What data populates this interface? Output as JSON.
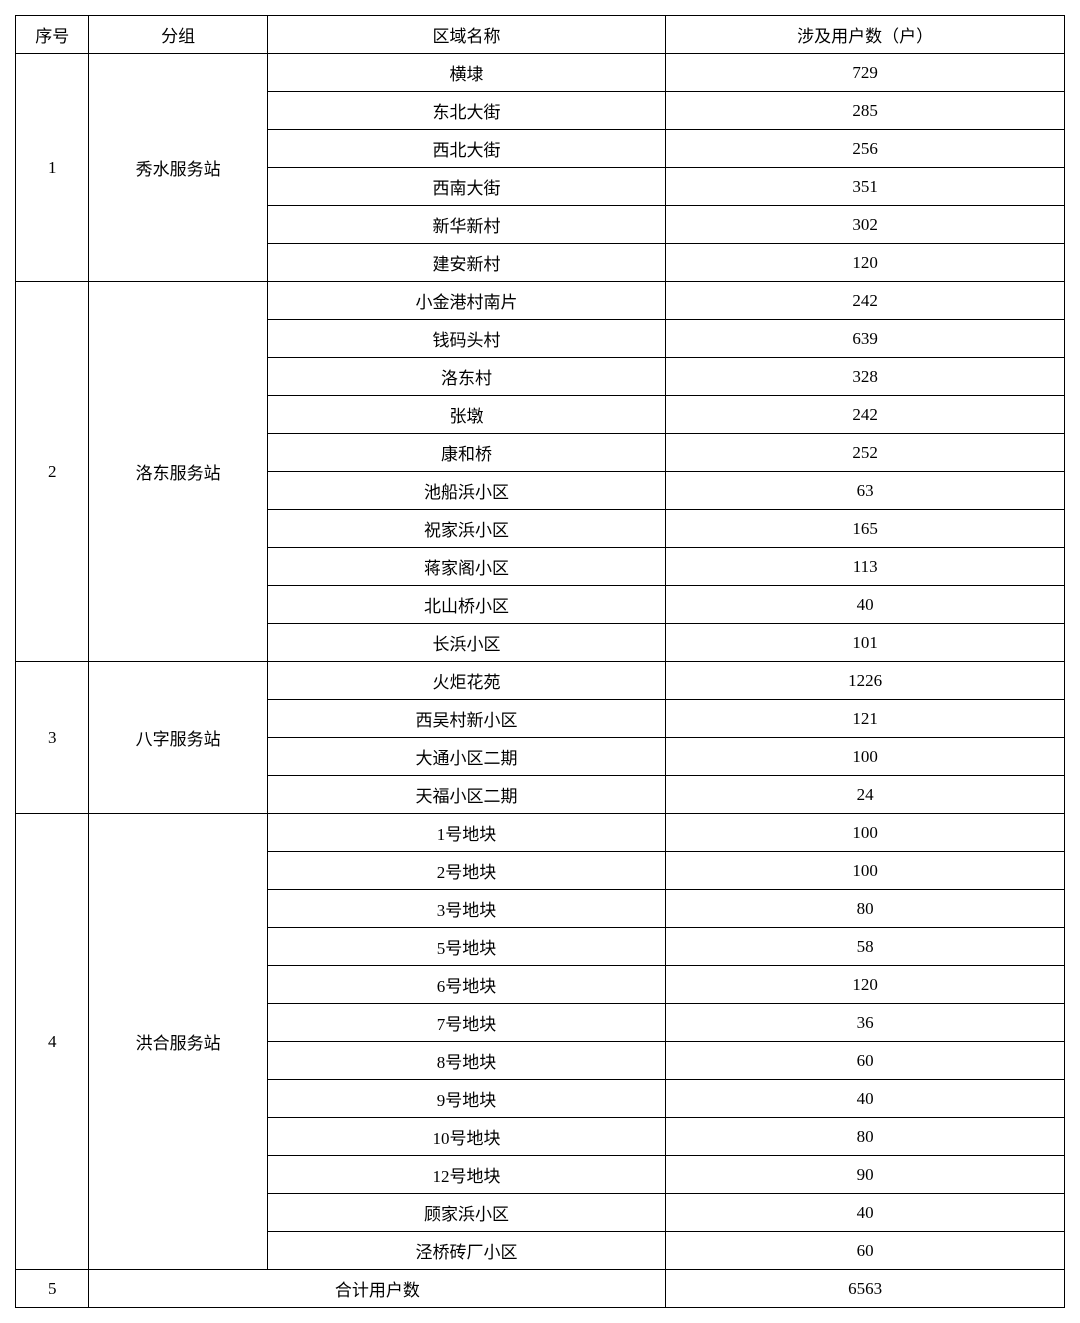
{
  "table": {
    "headers": {
      "seq": "序号",
      "group": "分组",
      "area": "区域名称",
      "users": "涉及用户数（户）"
    },
    "groups": [
      {
        "seq": "1",
        "name": "秀水服务站",
        "rows": [
          {
            "area": "横埭",
            "users": "729"
          },
          {
            "area": "东北大街",
            "users": "285"
          },
          {
            "area": "西北大街",
            "users": "256"
          },
          {
            "area": "西南大街",
            "users": "351"
          },
          {
            "area": "新华新村",
            "users": "302"
          },
          {
            "area": "建安新村",
            "users": "120"
          }
        ]
      },
      {
        "seq": "2",
        "name": "洛东服务站",
        "rows": [
          {
            "area": "小金港村南片",
            "users": "242"
          },
          {
            "area": "钱码头村",
            "users": "639"
          },
          {
            "area": "洛东村",
            "users": "328"
          },
          {
            "area": "张墩",
            "users": "242"
          },
          {
            "area": "康和桥",
            "users": "252"
          },
          {
            "area": "池船浜小区",
            "users": "63"
          },
          {
            "area": "祝家浜小区",
            "users": "165"
          },
          {
            "area": "蒋家阁小区",
            "users": "113"
          },
          {
            "area": "北山桥小区",
            "users": "40"
          },
          {
            "area": "长浜小区",
            "users": "101"
          }
        ]
      },
      {
        "seq": "3",
        "name": "八字服务站",
        "rows": [
          {
            "area": "火炬花苑",
            "users": "1226"
          },
          {
            "area": "西吴村新小区",
            "users": "121"
          },
          {
            "area": "大通小区二期",
            "users": "100"
          },
          {
            "area": "天福小区二期",
            "users": "24"
          }
        ]
      },
      {
        "seq": "4",
        "name": "洪合服务站",
        "rows": [
          {
            "area": "1号地块",
            "users": "100"
          },
          {
            "area": "2号地块",
            "users": "100"
          },
          {
            "area": "3号地块",
            "users": "80"
          },
          {
            "area": "5号地块",
            "users": "58"
          },
          {
            "area": "6号地块",
            "users": "120"
          },
          {
            "area": "7号地块",
            "users": "36"
          },
          {
            "area": "8号地块",
            "users": "60"
          },
          {
            "area": "9号地块",
            "users": "40"
          },
          {
            "area": "10号地块",
            "users": "80"
          },
          {
            "area": "12号地块",
            "users": "90"
          },
          {
            "area": "顾家浜小区",
            "users": "40"
          },
          {
            "area": "泾桥砖厂小区",
            "users": "60"
          }
        ]
      }
    ],
    "total": {
      "seq": "5",
      "label": "合计用户数",
      "users": "6563"
    }
  }
}
